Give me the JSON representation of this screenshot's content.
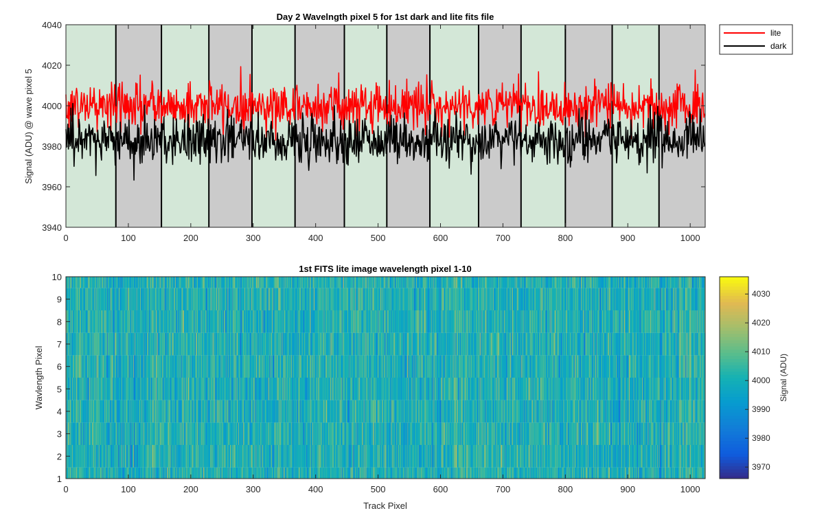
{
  "chart_data": [
    {
      "type": "line",
      "title": "Day 2 Wavelngth pixel 5 for 1st dark and lite fits file",
      "xlabel": "",
      "ylabel": "Signal (ADU) @ wave pixel 5",
      "xlim": [
        0,
        1024
      ],
      "ylim": [
        3940,
        4040
      ],
      "xticks": [
        0,
        100,
        200,
        300,
        400,
        500,
        600,
        700,
        800,
        900,
        1000
      ],
      "yticks": [
        3940,
        3960,
        3980,
        4000,
        4020,
        4040
      ],
      "grid": false,
      "legend_position": "outside-top-right",
      "background_bands": {
        "edges": [
          0,
          80,
          153,
          229,
          298,
          367,
          446,
          514,
          583,
          661,
          729,
          800,
          875,
          950,
          1024
        ],
        "colors": [
          "#d3e7d7",
          "#cbcbcb"
        ],
        "divider_color": "#000000"
      },
      "series": [
        {
          "name": "lite",
          "color": "#ff0000",
          "mean": 4000,
          "noise": 6,
          "range": [
            3973,
            4029
          ],
          "n_points": 1024
        },
        {
          "name": "dark",
          "color": "#000000",
          "mean": 3983,
          "noise": 6,
          "range": [
            3959,
            4008
          ],
          "n_points": 1024
        }
      ]
    },
    {
      "type": "heatmap",
      "title": "1st FITS lite image wavelength pixel 1-10",
      "xlabel": "Track Pixel",
      "ylabel": "Wavlength Pixel",
      "xlim": [
        0,
        1024
      ],
      "ylim": [
        1,
        10
      ],
      "xticks": [
        0,
        100,
        200,
        300,
        400,
        500,
        600,
        700,
        800,
        900,
        1000
      ],
      "yticks": [
        1,
        2,
        3,
        4,
        5,
        6,
        7,
        8,
        9,
        10
      ],
      "rows": 10,
      "cols": 1024,
      "colormap": "parula",
      "colorbar": {
        "label": "Signal (ADU)",
        "clim": [
          3966,
          4036
        ],
        "ticks": [
          3970,
          3980,
          3990,
          4000,
          4010,
          4020,
          4030
        ]
      },
      "value_mean": 4001,
      "value_range": [
        3966,
        4036
      ]
    }
  ]
}
